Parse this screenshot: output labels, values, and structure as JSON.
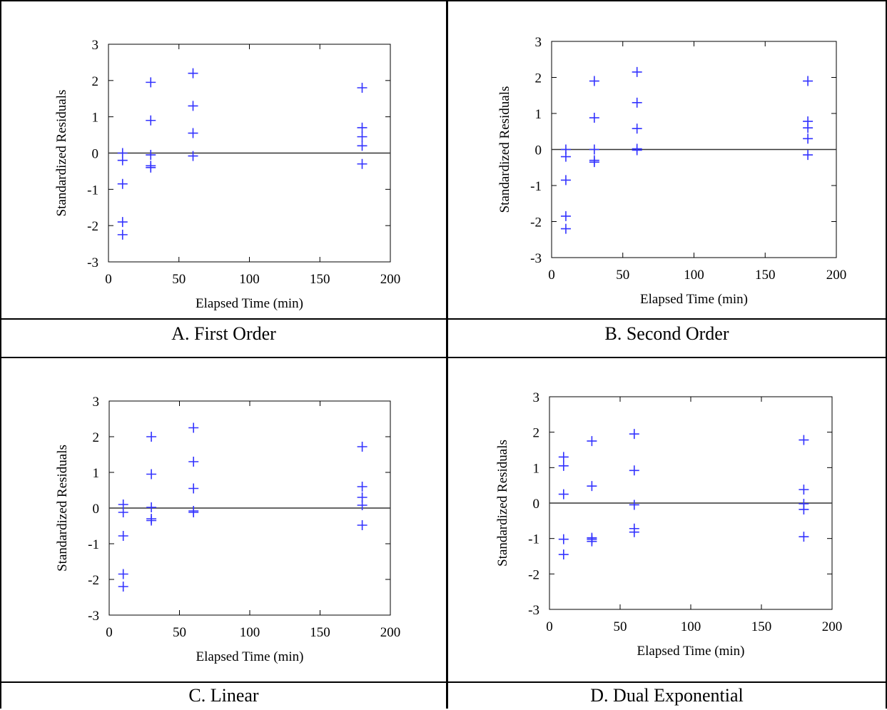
{
  "captions": [
    "A.  First Order",
    "B.  Second Order",
    "C.  Linear",
    "D.  Dual Exponential"
  ],
  "chart_data": [
    {
      "type": "scatter",
      "panel": "A.  First Order",
      "xlabel": "Elapsed Time (min)",
      "ylabel": "Standardized Residuals",
      "xlim": [
        0,
        200
      ],
      "ylim": [
        -3,
        3
      ],
      "xticks": [
        0,
        50,
        100,
        150,
        200
      ],
      "yticks": [
        3,
        2,
        1,
        0,
        -1,
        -2,
        -3
      ],
      "reference_line_y": 0,
      "marker": "+",
      "marker_color": "#3333ff",
      "points": [
        {
          "x": 10,
          "y": 0.0
        },
        {
          "x": 10,
          "y": -0.2
        },
        {
          "x": 10,
          "y": -0.85
        },
        {
          "x": 10,
          "y": -1.9
        },
        {
          "x": 10,
          "y": -2.25
        },
        {
          "x": 30,
          "y": 1.95
        },
        {
          "x": 30,
          "y": 0.9
        },
        {
          "x": 30,
          "y": -0.05
        },
        {
          "x": 30,
          "y": -0.35
        },
        {
          "x": 30,
          "y": -0.4
        },
        {
          "x": 60,
          "y": 2.2
        },
        {
          "x": 60,
          "y": 1.3
        },
        {
          "x": 60,
          "y": 0.55
        },
        {
          "x": 60,
          "y": -0.08
        },
        {
          "x": 180,
          "y": 1.8
        },
        {
          "x": 180,
          "y": 0.7
        },
        {
          "x": 180,
          "y": 0.45
        },
        {
          "x": 180,
          "y": 0.2
        },
        {
          "x": 180,
          "y": -0.3
        }
      ]
    },
    {
      "type": "scatter",
      "panel": "B.  Second Order",
      "xlabel": "Elapsed Time (min)",
      "ylabel": "Standardized Residuals",
      "xlim": [
        0,
        200
      ],
      "ylim": [
        -3,
        3
      ],
      "xticks": [
        0,
        50,
        100,
        150,
        200
      ],
      "yticks": [
        3,
        2,
        1,
        0,
        -1,
        -2,
        -3
      ],
      "reference_line_y": 0,
      "marker": "+",
      "marker_color": "#3333ff",
      "points": [
        {
          "x": 10,
          "y": 0.0
        },
        {
          "x": 10,
          "y": -0.2
        },
        {
          "x": 10,
          "y": -0.85
        },
        {
          "x": 10,
          "y": -1.85
        },
        {
          "x": 10,
          "y": -2.2
        },
        {
          "x": 30,
          "y": 1.9
        },
        {
          "x": 30,
          "y": 0.88
        },
        {
          "x": 30,
          "y": 0.0
        },
        {
          "x": 30,
          "y": -0.3
        },
        {
          "x": 30,
          "y": -0.35
        },
        {
          "x": 60,
          "y": 2.15
        },
        {
          "x": 60,
          "y": 1.3
        },
        {
          "x": 60,
          "y": 0.58
        },
        {
          "x": 60,
          "y": 0.02
        },
        {
          "x": 60,
          "y": -0.02
        },
        {
          "x": 180,
          "y": 1.9
        },
        {
          "x": 180,
          "y": 0.78
        },
        {
          "x": 180,
          "y": 0.6
        },
        {
          "x": 180,
          "y": 0.3
        },
        {
          "x": 180,
          "y": -0.15
        }
      ]
    },
    {
      "type": "scatter",
      "panel": "C.  Linear",
      "xlabel": "Elapsed Time (min)",
      "ylabel": "Standardized Residuals",
      "xlim": [
        0,
        200
      ],
      "ylim": [
        -3,
        3
      ],
      "xticks": [
        0,
        50,
        100,
        150,
        200
      ],
      "yticks": [
        3,
        2,
        1,
        0,
        -1,
        -2,
        -3
      ],
      "reference_line_y": 0,
      "marker": "+",
      "marker_color": "#3333ff",
      "points": [
        {
          "x": 10,
          "y": 0.1
        },
        {
          "x": 10,
          "y": -0.12
        },
        {
          "x": 10,
          "y": -0.78
        },
        {
          "x": 10,
          "y": -1.85
        },
        {
          "x": 10,
          "y": -2.2
        },
        {
          "x": 30,
          "y": 2.0
        },
        {
          "x": 30,
          "y": 0.95
        },
        {
          "x": 30,
          "y": 0.02
        },
        {
          "x": 30,
          "y": -0.3
        },
        {
          "x": 30,
          "y": -0.35
        },
        {
          "x": 60,
          "y": 2.25
        },
        {
          "x": 60,
          "y": 1.3
        },
        {
          "x": 60,
          "y": 0.55
        },
        {
          "x": 60,
          "y": -0.08
        },
        {
          "x": 60,
          "y": -0.12
        },
        {
          "x": 180,
          "y": 1.72
        },
        {
          "x": 180,
          "y": 0.6
        },
        {
          "x": 180,
          "y": 0.3
        },
        {
          "x": 180,
          "y": 0.08
        },
        {
          "x": 180,
          "y": -0.48
        }
      ]
    },
    {
      "type": "scatter",
      "panel": "D.  Dual Exponential",
      "xlabel": "Elapsed Time (min)",
      "ylabel": "Standardized Residuals",
      "xlim": [
        0,
        200
      ],
      "ylim": [
        -3,
        3
      ],
      "xticks": [
        0,
        50,
        100,
        150,
        200
      ],
      "yticks": [
        3,
        2,
        1,
        0,
        -1,
        -2,
        -3
      ],
      "reference_line_y": 0,
      "marker": "+",
      "marker_color": "#3333ff",
      "points": [
        {
          "x": 10,
          "y": 1.3
        },
        {
          "x": 10,
          "y": 1.05
        },
        {
          "x": 10,
          "y": 0.25
        },
        {
          "x": 10,
          "y": -1.02
        },
        {
          "x": 10,
          "y": -1.45
        },
        {
          "x": 30,
          "y": 1.75
        },
        {
          "x": 30,
          "y": 0.48
        },
        {
          "x": 30,
          "y": -0.98
        },
        {
          "x": 30,
          "y": -1.02
        },
        {
          "x": 30,
          "y": -1.08
        },
        {
          "x": 60,
          "y": 1.95
        },
        {
          "x": 60,
          "y": 0.92
        },
        {
          "x": 60,
          "y": -0.05
        },
        {
          "x": 60,
          "y": -0.72
        },
        {
          "x": 60,
          "y": -0.82
        },
        {
          "x": 180,
          "y": 1.78
        },
        {
          "x": 180,
          "y": 0.38
        },
        {
          "x": 180,
          "y": -0.02
        },
        {
          "x": 180,
          "y": -0.18
        },
        {
          "x": 180,
          "y": -0.95
        }
      ]
    }
  ]
}
